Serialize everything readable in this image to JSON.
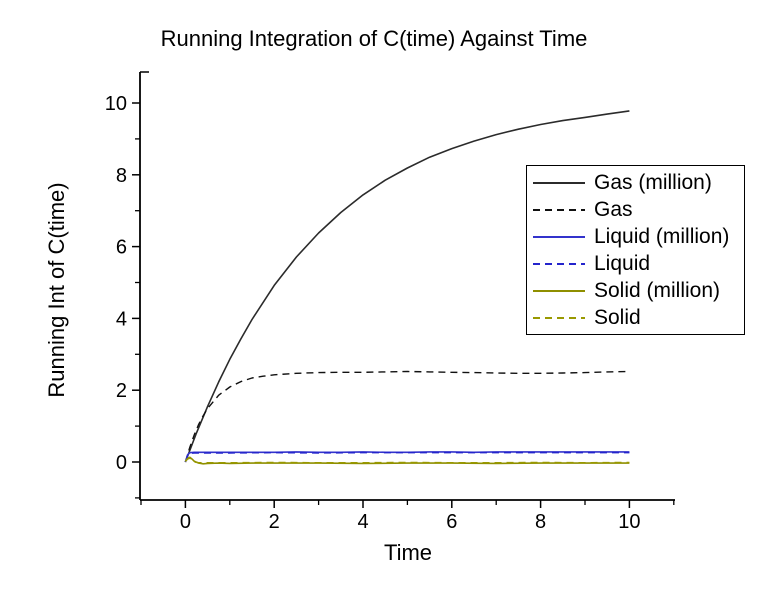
{
  "chart_data": {
    "type": "line",
    "title": "Running Integration of C(time) Against Time",
    "xlabel": "Time",
    "ylabel": "Running Int of C(time)",
    "xlim": [
      -1.02,
      11.03
    ],
    "ylim": [
      -1.06,
      10.86
    ],
    "x_major_ticks": [
      0,
      2,
      4,
      6,
      8,
      10
    ],
    "x_minor_ticks": [
      -1,
      1,
      3,
      5,
      7,
      9,
      11
    ],
    "y_major_ticks": [
      0,
      2,
      4,
      6,
      8,
      10
    ],
    "y_minor_ticks": [
      -1,
      1,
      3,
      5,
      7,
      9
    ],
    "grid": false,
    "legend_position": "inside-right",
    "axis_color": "#000000",
    "background_color": "#ffffff",
    "series": [
      {
        "name": "Gas (million)",
        "color": "#2b2b2b",
        "dash": "solid",
        "points": [
          [
            0,
            0
          ],
          [
            0.25,
            0.81
          ],
          [
            0.5,
            1.55
          ],
          [
            0.75,
            2.23
          ],
          [
            1,
            2.86
          ],
          [
            1.25,
            3.43
          ],
          [
            1.5,
            3.97
          ],
          [
            2,
            4.92
          ],
          [
            2.5,
            5.71
          ],
          [
            3,
            6.38
          ],
          [
            3.5,
            6.95
          ],
          [
            4,
            7.44
          ],
          [
            4.5,
            7.85
          ],
          [
            5,
            8.19
          ],
          [
            5.5,
            8.49
          ],
          [
            6,
            8.73
          ],
          [
            6.5,
            8.94
          ],
          [
            7,
            9.12
          ],
          [
            7.5,
            9.27
          ],
          [
            8,
            9.4
          ],
          [
            8.5,
            9.51
          ],
          [
            9,
            9.6
          ],
          [
            9.5,
            9.69
          ],
          [
            10,
            9.78
          ]
        ]
      },
      {
        "name": "Gas",
        "color": "#111111",
        "dash": "dashed",
        "points": [
          [
            0,
            0
          ],
          [
            0.1,
            0.41
          ],
          [
            0.2,
            0.76
          ],
          [
            0.3,
            1.05
          ],
          [
            0.4,
            1.29
          ],
          [
            0.5,
            1.49
          ],
          [
            0.75,
            1.86
          ],
          [
            1,
            2.09
          ],
          [
            1.25,
            2.24
          ],
          [
            1.5,
            2.34
          ],
          [
            1.75,
            2.39
          ],
          [
            2,
            2.43
          ],
          [
            2.5,
            2.47
          ],
          [
            3,
            2.49
          ],
          [
            3.5,
            2.5
          ],
          [
            4,
            2.5
          ],
          [
            4.5,
            2.51
          ],
          [
            5,
            2.52
          ],
          [
            5.5,
            2.51
          ],
          [
            6,
            2.5
          ],
          [
            6.5,
            2.49
          ],
          [
            7,
            2.48
          ],
          [
            7.5,
            2.47
          ],
          [
            8,
            2.47
          ],
          [
            8.5,
            2.48
          ],
          [
            9,
            2.49
          ],
          [
            9.5,
            2.51
          ],
          [
            10,
            2.52
          ]
        ]
      },
      {
        "name": "Liquid (million)",
        "color": "#3333cc",
        "dash": "solid",
        "points": [
          [
            0,
            0
          ],
          [
            0.05,
            0.2
          ],
          [
            0.1,
            0.26
          ],
          [
            0.2,
            0.27
          ],
          [
            0.5,
            0.27
          ],
          [
            1,
            0.27
          ],
          [
            1.5,
            0.27
          ],
          [
            2,
            0.27
          ],
          [
            2.5,
            0.28
          ],
          [
            3,
            0.27
          ],
          [
            3.5,
            0.27
          ],
          [
            4,
            0.28
          ],
          [
            4.5,
            0.27
          ],
          [
            5,
            0.27
          ],
          [
            5.5,
            0.28
          ],
          [
            6,
            0.28
          ],
          [
            6.5,
            0.27
          ],
          [
            7,
            0.28
          ],
          [
            7.5,
            0.28
          ],
          [
            8,
            0.28
          ],
          [
            8.5,
            0.28
          ],
          [
            9,
            0.28
          ],
          [
            9.5,
            0.28
          ],
          [
            10,
            0.28
          ]
        ]
      },
      {
        "name": "Liquid",
        "color": "#2424cc",
        "dash": "dashed",
        "points": [
          [
            0,
            0
          ],
          [
            0.05,
            0.17
          ],
          [
            0.1,
            0.24
          ],
          [
            0.2,
            0.25
          ],
          [
            0.5,
            0.25
          ],
          [
            1,
            0.25
          ],
          [
            2,
            0.26
          ],
          [
            3,
            0.25
          ],
          [
            4,
            0.26
          ],
          [
            5,
            0.26
          ],
          [
            6,
            0.26
          ],
          [
            7,
            0.26
          ],
          [
            8,
            0.26
          ],
          [
            9,
            0.26
          ],
          [
            10,
            0.26
          ]
        ]
      },
      {
        "name": "Solid (million)",
        "color": "#8f8f00",
        "dash": "solid",
        "points": [
          [
            0,
            0.02
          ],
          [
            0.05,
            0.1
          ],
          [
            0.1,
            0.13
          ],
          [
            0.15,
            0.08
          ],
          [
            0.2,
            0.02
          ],
          [
            0.3,
            -0.03
          ],
          [
            0.4,
            -0.05
          ],
          [
            0.5,
            -0.04
          ],
          [
            0.75,
            -0.03
          ],
          [
            1,
            -0.04
          ],
          [
            1.5,
            -0.03
          ],
          [
            2,
            -0.03
          ],
          [
            3,
            -0.03
          ],
          [
            4,
            -0.04
          ],
          [
            5,
            -0.03
          ],
          [
            6,
            -0.03
          ],
          [
            7,
            -0.04
          ],
          [
            8,
            -0.03
          ],
          [
            9,
            -0.03
          ],
          [
            10,
            -0.03
          ]
        ]
      },
      {
        "name": "Solid",
        "color": "#999900",
        "dash": "dashed",
        "points": [
          [
            0,
            0.01
          ],
          [
            0.05,
            0.08
          ],
          [
            0.1,
            0.11
          ],
          [
            0.15,
            0.05
          ],
          [
            0.2,
            0
          ],
          [
            0.3,
            -0.02
          ],
          [
            0.5,
            -0.02
          ],
          [
            1,
            -0.02
          ],
          [
            2,
            -0.01
          ],
          [
            3,
            -0.02
          ],
          [
            4,
            -0.02
          ],
          [
            5,
            -0.01
          ],
          [
            6,
            -0.02
          ],
          [
            7,
            -0.02
          ],
          [
            8,
            -0.01
          ],
          [
            9,
            -0.02
          ],
          [
            10,
            -0.01
          ]
        ]
      }
    ]
  }
}
